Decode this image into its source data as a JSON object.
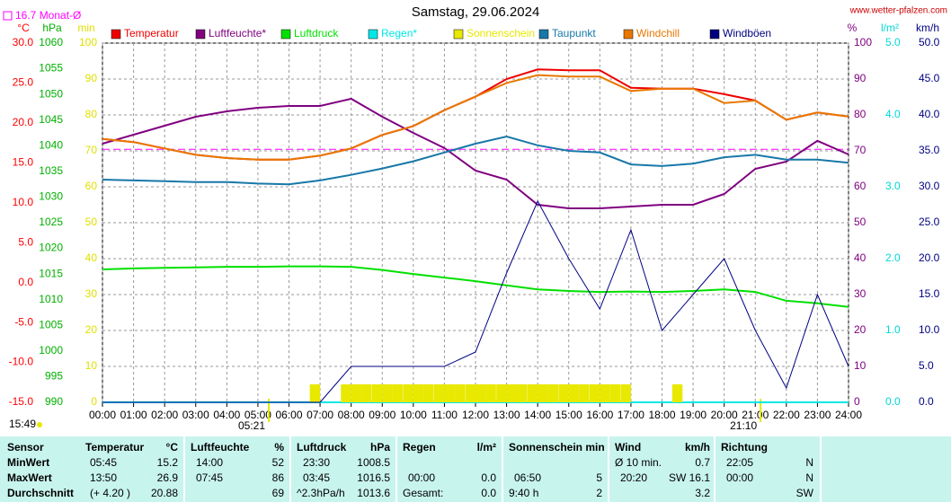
{
  "chart_data": {
    "type": "line",
    "title": "Samstag, 29.06.2024",
    "source": "www.wetter-pfalzen.com",
    "axes": [
      {
        "unit": "°C",
        "color": "#ff0000",
        "lim": [
          -15,
          30
        ],
        "ticks": [
          {
            "value": -15,
            "label": "-15.0"
          },
          {
            "value": -10,
            "label": "-10.0"
          },
          {
            "value": -5,
            "label": "-5.0"
          },
          {
            "value": 0,
            "label": "0.0"
          },
          {
            "value": 5,
            "label": "5.0"
          },
          {
            "value": 10,
            "label": "10.0"
          },
          {
            "value": 15,
            "label": "15.0"
          },
          {
            "value": 20,
            "label": "20.0"
          },
          {
            "value": 25,
            "label": "25.0"
          },
          {
            "value": 30,
            "label": "30.0"
          }
        ]
      },
      {
        "unit": "hPa",
        "color": "#00b000",
        "lim": [
          990,
          1060
        ],
        "ticks": [
          990,
          995,
          1000,
          1005,
          1010,
          1015,
          1020,
          1025,
          1030,
          1035,
          1040,
          1045,
          1050,
          1055,
          1060
        ]
      },
      {
        "unit": "min",
        "color": "#e0e000",
        "lim": [
          0,
          100
        ],
        "ticks": [
          0,
          10,
          20,
          30,
          40,
          50,
          60,
          70,
          80,
          90,
          100
        ]
      },
      {
        "unit": "%",
        "color": "#800080",
        "lim": [
          0,
          100
        ],
        "ticks": [
          0,
          10,
          20,
          30,
          40,
          50,
          60,
          70,
          80,
          90,
          100
        ]
      },
      {
        "unit": "l/m²",
        "color": "#00d8d8",
        "lim": [
          0,
          5
        ],
        "ticks": [
          {
            "value": 0,
            "label": "0.0"
          },
          {
            "value": 1,
            "label": "1.0"
          },
          {
            "value": 2,
            "label": "2.0"
          },
          {
            "value": 3,
            "label": "3.0"
          },
          {
            "value": 4,
            "label": "4.0"
          },
          {
            "value": 5,
            "label": "5.0"
          }
        ]
      },
      {
        "unit": "km/h",
        "color": "#000080",
        "lim": [
          0,
          50
        ],
        "ticks": [
          {
            "value": 0,
            "label": "0.0"
          },
          {
            "value": 5,
            "label": "5.0"
          },
          {
            "value": 10,
            "label": "10.0"
          },
          {
            "value": 15,
            "label": "15.0"
          },
          {
            "value": 20,
            "label": "20.0"
          },
          {
            "value": 25,
            "label": "25.0"
          },
          {
            "value": 30,
            "label": "30.0"
          },
          {
            "value": 35,
            "label": "35.0"
          },
          {
            "value": 40,
            "label": "40.0"
          },
          {
            "value": 45,
            "label": "45.0"
          },
          {
            "value": 50,
            "label": "50.0"
          }
        ]
      }
    ],
    "grid": true,
    "grid_axis": 3,
    "xlim": [
      0,
      24
    ],
    "xticks": [
      {
        "value": 0,
        "label": "00:00"
      },
      {
        "value": 1,
        "label": "01:00"
      },
      {
        "value": 2,
        "label": "02:00"
      },
      {
        "value": 3,
        "label": "03:00"
      },
      {
        "value": 4,
        "label": "04:00"
      },
      {
        "value": 5,
        "label": "05:00"
      },
      {
        "value": 6,
        "label": "06:00"
      },
      {
        "value": 7,
        "label": "07:00"
      },
      {
        "value": 8,
        "label": "08:00"
      },
      {
        "value": 9,
        "label": "09:00"
      },
      {
        "value": 10,
        "label": "10:00"
      },
      {
        "value": 11,
        "label": "11:00"
      },
      {
        "value": 12,
        "label": "12:00"
      },
      {
        "value": 13,
        "label": "13:00"
      },
      {
        "value": 14,
        "label": "14:00"
      },
      {
        "value": 15,
        "label": "15:00"
      },
      {
        "value": 16,
        "label": "16:00"
      },
      {
        "value": 17,
        "label": "17:00"
      },
      {
        "value": 18,
        "label": "18:00"
      },
      {
        "value": 19,
        "label": "19:00"
      },
      {
        "value": 20,
        "label": "20:00"
      },
      {
        "value": 21,
        "label": "21:00"
      },
      {
        "value": 22,
        "label": "22:00"
      },
      {
        "value": 23,
        "label": "23:00"
      },
      {
        "value": 24,
        "label": "24:00"
      }
    ],
    "x": [
      0,
      1,
      2,
      3,
      4,
      5,
      6,
      7,
      8,
      9,
      10,
      11,
      12,
      13,
      14,
      15,
      16,
      17,
      18,
      19,
      20,
      21,
      22,
      23,
      24
    ],
    "series": [
      {
        "name": "Temperatur",
        "color": "#ee0000",
        "axis": 0,
        "values": [
          18.0,
          17.6,
          16.8,
          16.0,
          15.6,
          15.4,
          15.4,
          15.9,
          16.8,
          18.5,
          19.6,
          21.6,
          23.3,
          25.5,
          26.7,
          26.6,
          26.6,
          24.4,
          24.3,
          24.3,
          23.6,
          22.8,
          20.4,
          21.3,
          20.8
        ]
      },
      {
        "name": "Luftfeuchte*",
        "color": "#800080",
        "axis": 3,
        "values": [
          72,
          74.5,
          77,
          79.5,
          81,
          82,
          82.5,
          82.5,
          84.5,
          79.5,
          75,
          70.8,
          64.5,
          62,
          55,
          54,
          54,
          54.5,
          55,
          55,
          58,
          65,
          67,
          72.8,
          69
        ]
      },
      {
        "name": "Luftdruck",
        "color": "#00e000",
        "axis": 1,
        "values": [
          1015.9,
          1016.1,
          1016.2,
          1016.3,
          1016.4,
          1016.4,
          1016.5,
          1016.5,
          1016.4,
          1015.8,
          1015.0,
          1014.3,
          1013.6,
          1012.8,
          1012.0,
          1011.7,
          1011.5,
          1011.6,
          1011.5,
          1011.7,
          1012.0,
          1011.5,
          1009.8,
          1009.3,
          1008.6
        ]
      },
      {
        "name": "Regen*",
        "color": "#00e8e8",
        "axis": 4,
        "values": [
          0,
          0,
          0,
          0,
          0,
          0,
          0,
          0,
          0,
          0,
          0,
          0,
          0,
          0,
          0,
          0,
          0,
          0,
          0,
          0,
          0,
          0,
          0,
          0,
          0
        ]
      },
      {
        "name": "Sonnenschein",
        "color": "#e8e800",
        "axis": 2,
        "kind": "bar",
        "x": [
          6.67,
          7,
          7.33,
          7.67,
          8,
          8.33,
          8.67,
          9,
          9.33,
          9.67,
          10,
          10.33,
          10.67,
          11,
          11.33,
          11.67,
          12,
          12.33,
          12.67,
          13,
          13.33,
          13.67,
          14,
          14.33,
          14.67,
          15,
          15.33,
          15.67,
          16,
          16.33,
          16.67,
          17,
          17.33,
          17.67,
          18,
          18.33
        ],
        "values": [
          5,
          0,
          0,
          5,
          5,
          5,
          5,
          5,
          5,
          5,
          5,
          5,
          5,
          5,
          5,
          5,
          5,
          5,
          5,
          5,
          5,
          5,
          5,
          5,
          5,
          5,
          5,
          5,
          5,
          5,
          5,
          0,
          0,
          0,
          0,
          5
        ]
      },
      {
        "name": "Taupunkt",
        "color": "#1878a8",
        "axis": 0,
        "values": [
          12.9,
          12.8,
          12.7,
          12.6,
          12.6,
          12.4,
          12.3,
          12.8,
          13.5,
          14.3,
          15.2,
          16.3,
          17.4,
          18.3,
          17.2,
          16.5,
          16.3,
          14.8,
          14.6,
          14.9,
          15.7,
          16.0,
          15.4,
          15.4,
          15.0
        ]
      },
      {
        "name": "Windchill",
        "color": "#e87800",
        "axis": 0,
        "values": [
          18.0,
          17.6,
          16.8,
          16.0,
          15.6,
          15.4,
          15.4,
          15.9,
          16.8,
          18.5,
          19.6,
          21.6,
          23.3,
          25.0,
          26.0,
          25.8,
          25.8,
          24.0,
          24.3,
          24.3,
          22.5,
          22.8,
          20.4,
          21.3,
          20.8
        ]
      },
      {
        "name": "Windböen",
        "color": "#000080",
        "axis": 5,
        "values": [
          0,
          0,
          0,
          0,
          0,
          0,
          0,
          0,
          5,
          5,
          5,
          5,
          7,
          18,
          28,
          20,
          13,
          24,
          10,
          15,
          20,
          10,
          2,
          15,
          5
        ]
      }
    ],
    "month_average": {
      "label": "16.7 Monat-Ø",
      "value": 16.7,
      "color": "#ff00ff"
    },
    "sunrise": {
      "label": "05:21",
      "x": 5.35
    },
    "sunset": {
      "label": "21:10",
      "x": 21.17
    },
    "time": "15:49"
  },
  "table": {
    "rows": [
      [
        "Sensor",
        "Temperatur",
        "°C",
        "Luftfeuchte",
        "%",
        "Luftdruck",
        "hPa",
        "Regen",
        "l/m²",
        "Sonnenschein min",
        "Wind",
        "km/h",
        "Richtung"
      ],
      [
        "MinWert",
        "05:45",
        "15.2",
        "14:00",
        "52",
        "23:30",
        "1008.5",
        "Ø 10 min.",
        "0.7",
        "22:05",
        "N"
      ],
      [
        "MaxWert",
        "13:50",
        "26.9",
        "07:45",
        "86",
        "03:45",
        "1016.5",
        "00:00",
        "0.0",
        "06:50",
        "5",
        "20:20",
        "SW 16.1",
        "00:00",
        "N"
      ],
      [
        "Durchschnitt",
        "(+ 4.20 )",
        "20.88",
        "69",
        "^2.3hPa/h",
        "1013.6",
        "Gesamt:",
        "0.0",
        "9:40 h",
        "2",
        "3.2",
        "SW"
      ]
    ]
  }
}
